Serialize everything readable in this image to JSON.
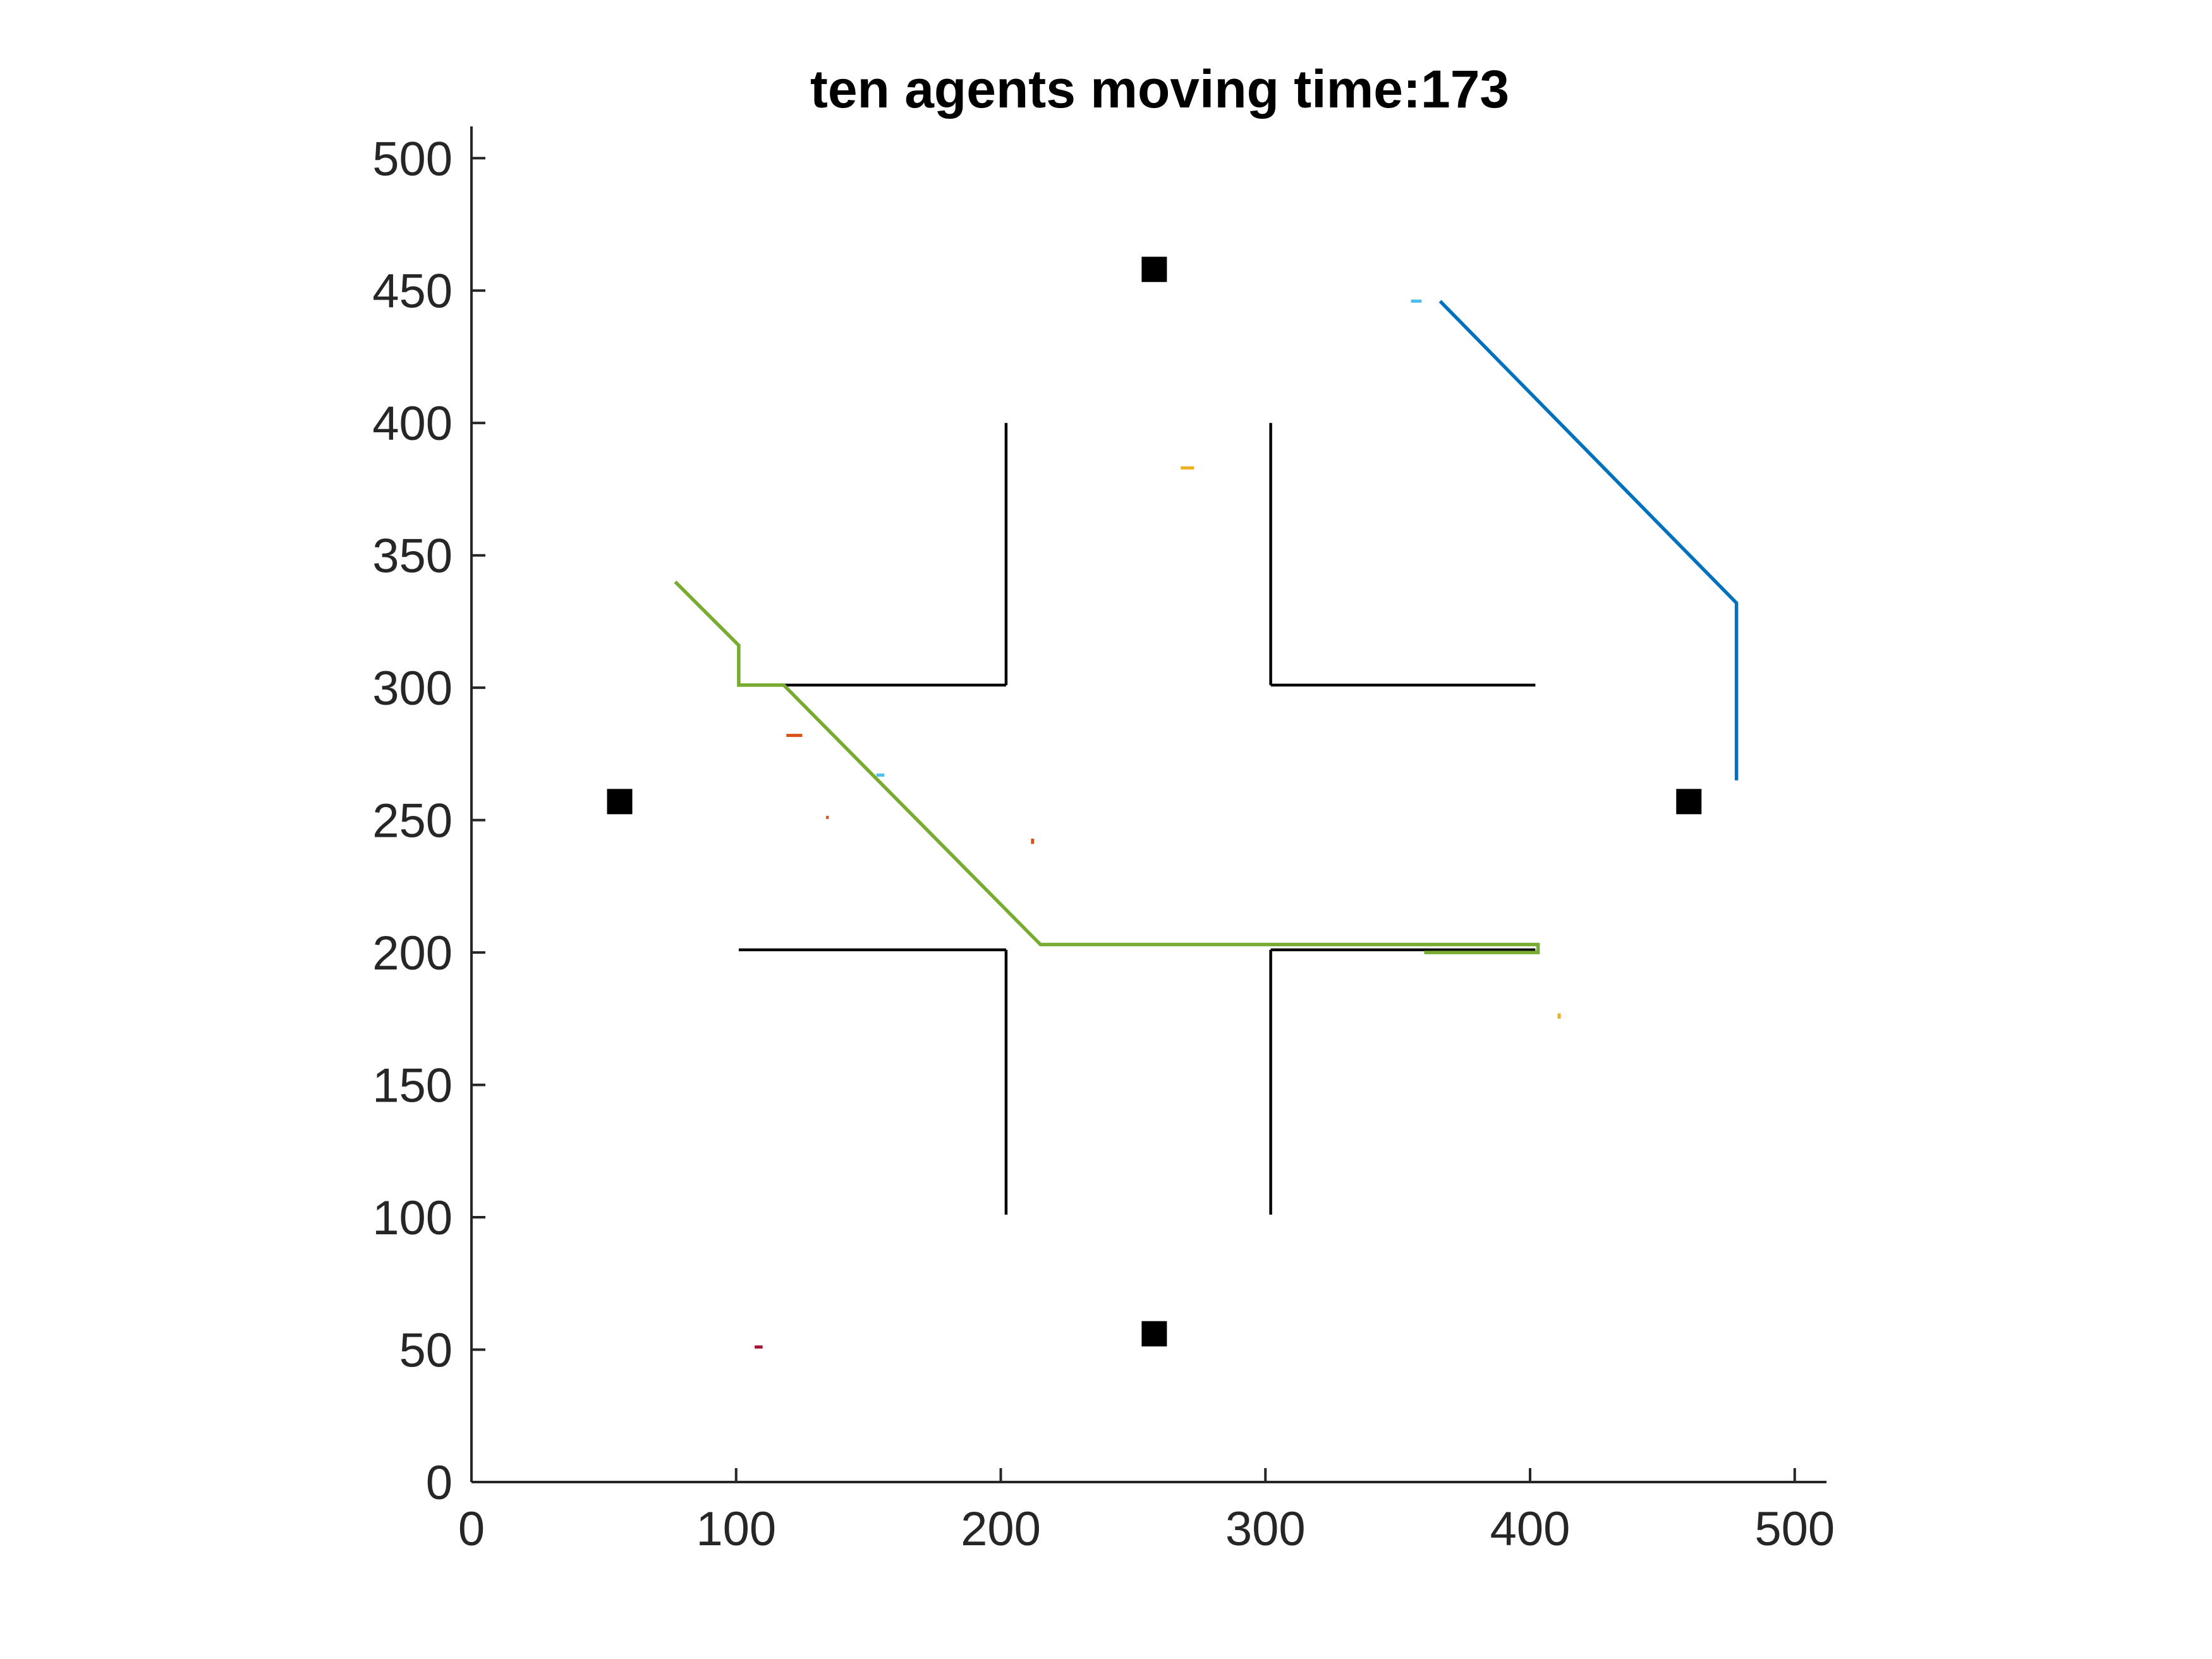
{
  "chart_data": {
    "type": "line",
    "title": "ten agents moving time:173",
    "xlabel": "",
    "ylabel": "",
    "xlim": [
      0,
      512
    ],
    "ylim": [
      0,
      512
    ],
    "xticks": [
      0,
      100,
      200,
      300,
      400,
      500
    ],
    "yticks": [
      0,
      50,
      100,
      150,
      200,
      250,
      300,
      350,
      400,
      450,
      500
    ],
    "grid": false,
    "legend": "none",
    "walls": [
      [
        [
          202,
          400
        ],
        [
          202,
          301
        ]
      ],
      [
        [
          101,
          301
        ],
        [
          202,
          301
        ]
      ],
      [
        [
          302,
          400
        ],
        [
          302,
          301
        ]
      ],
      [
        [
          302,
          301
        ],
        [
          402,
          301
        ]
      ],
      [
        [
          101,
          201
        ],
        [
          202,
          201
        ]
      ],
      [
        [
          202,
          201
        ],
        [
          202,
          101
        ]
      ],
      [
        [
          302,
          201
        ],
        [
          402,
          201
        ]
      ],
      [
        [
          302,
          201
        ],
        [
          302,
          101
        ]
      ]
    ],
    "targets": [
      [
        56,
        257
      ],
      [
        258,
        458
      ],
      [
        460,
        257
      ],
      [
        258,
        56
      ]
    ],
    "series": [
      {
        "color": "#0072BD",
        "points": [
          [
            366,
            446
          ],
          [
            478,
            332
          ],
          [
            478,
            265
          ]
        ]
      },
      {
        "color": "#77AC30",
        "points": [
          [
            77,
            340
          ],
          [
            101,
            316
          ],
          [
            101,
            301
          ],
          [
            118,
            301
          ],
          [
            215,
            203
          ],
          [
            403,
            203
          ],
          [
            403,
            200
          ],
          [
            360,
            200
          ]
        ]
      }
    ],
    "agents": [
      {
        "color": "#4DBEEE",
        "points": [
          [
            355,
            446
          ],
          [
            359,
            446
          ]
        ]
      },
      {
        "color": "#EDB120",
        "points": [
          [
            268,
            383
          ],
          [
            273,
            383
          ]
        ]
      },
      {
        "color": "#D95319",
        "points": [
          [
            119,
            282
          ],
          [
            125,
            282
          ]
        ]
      },
      {
        "color": "#4DBEEE",
        "points": [
          [
            153,
            267
          ],
          [
            156,
            267
          ]
        ]
      },
      {
        "color": "#D95319",
        "points": [
          [
            134,
            251
          ],
          [
            135,
            251
          ]
        ]
      },
      {
        "color": "#D95319",
        "points": [
          [
            212,
            241
          ],
          [
            212,
            243
          ]
        ]
      },
      {
        "color": "#EDB120",
        "points": [
          [
            411,
            175
          ],
          [
            411,
            177
          ]
        ]
      },
      {
        "color": "#A2142F",
        "points": [
          [
            107,
            51
          ],
          [
            110,
            51
          ]
        ]
      }
    ]
  }
}
